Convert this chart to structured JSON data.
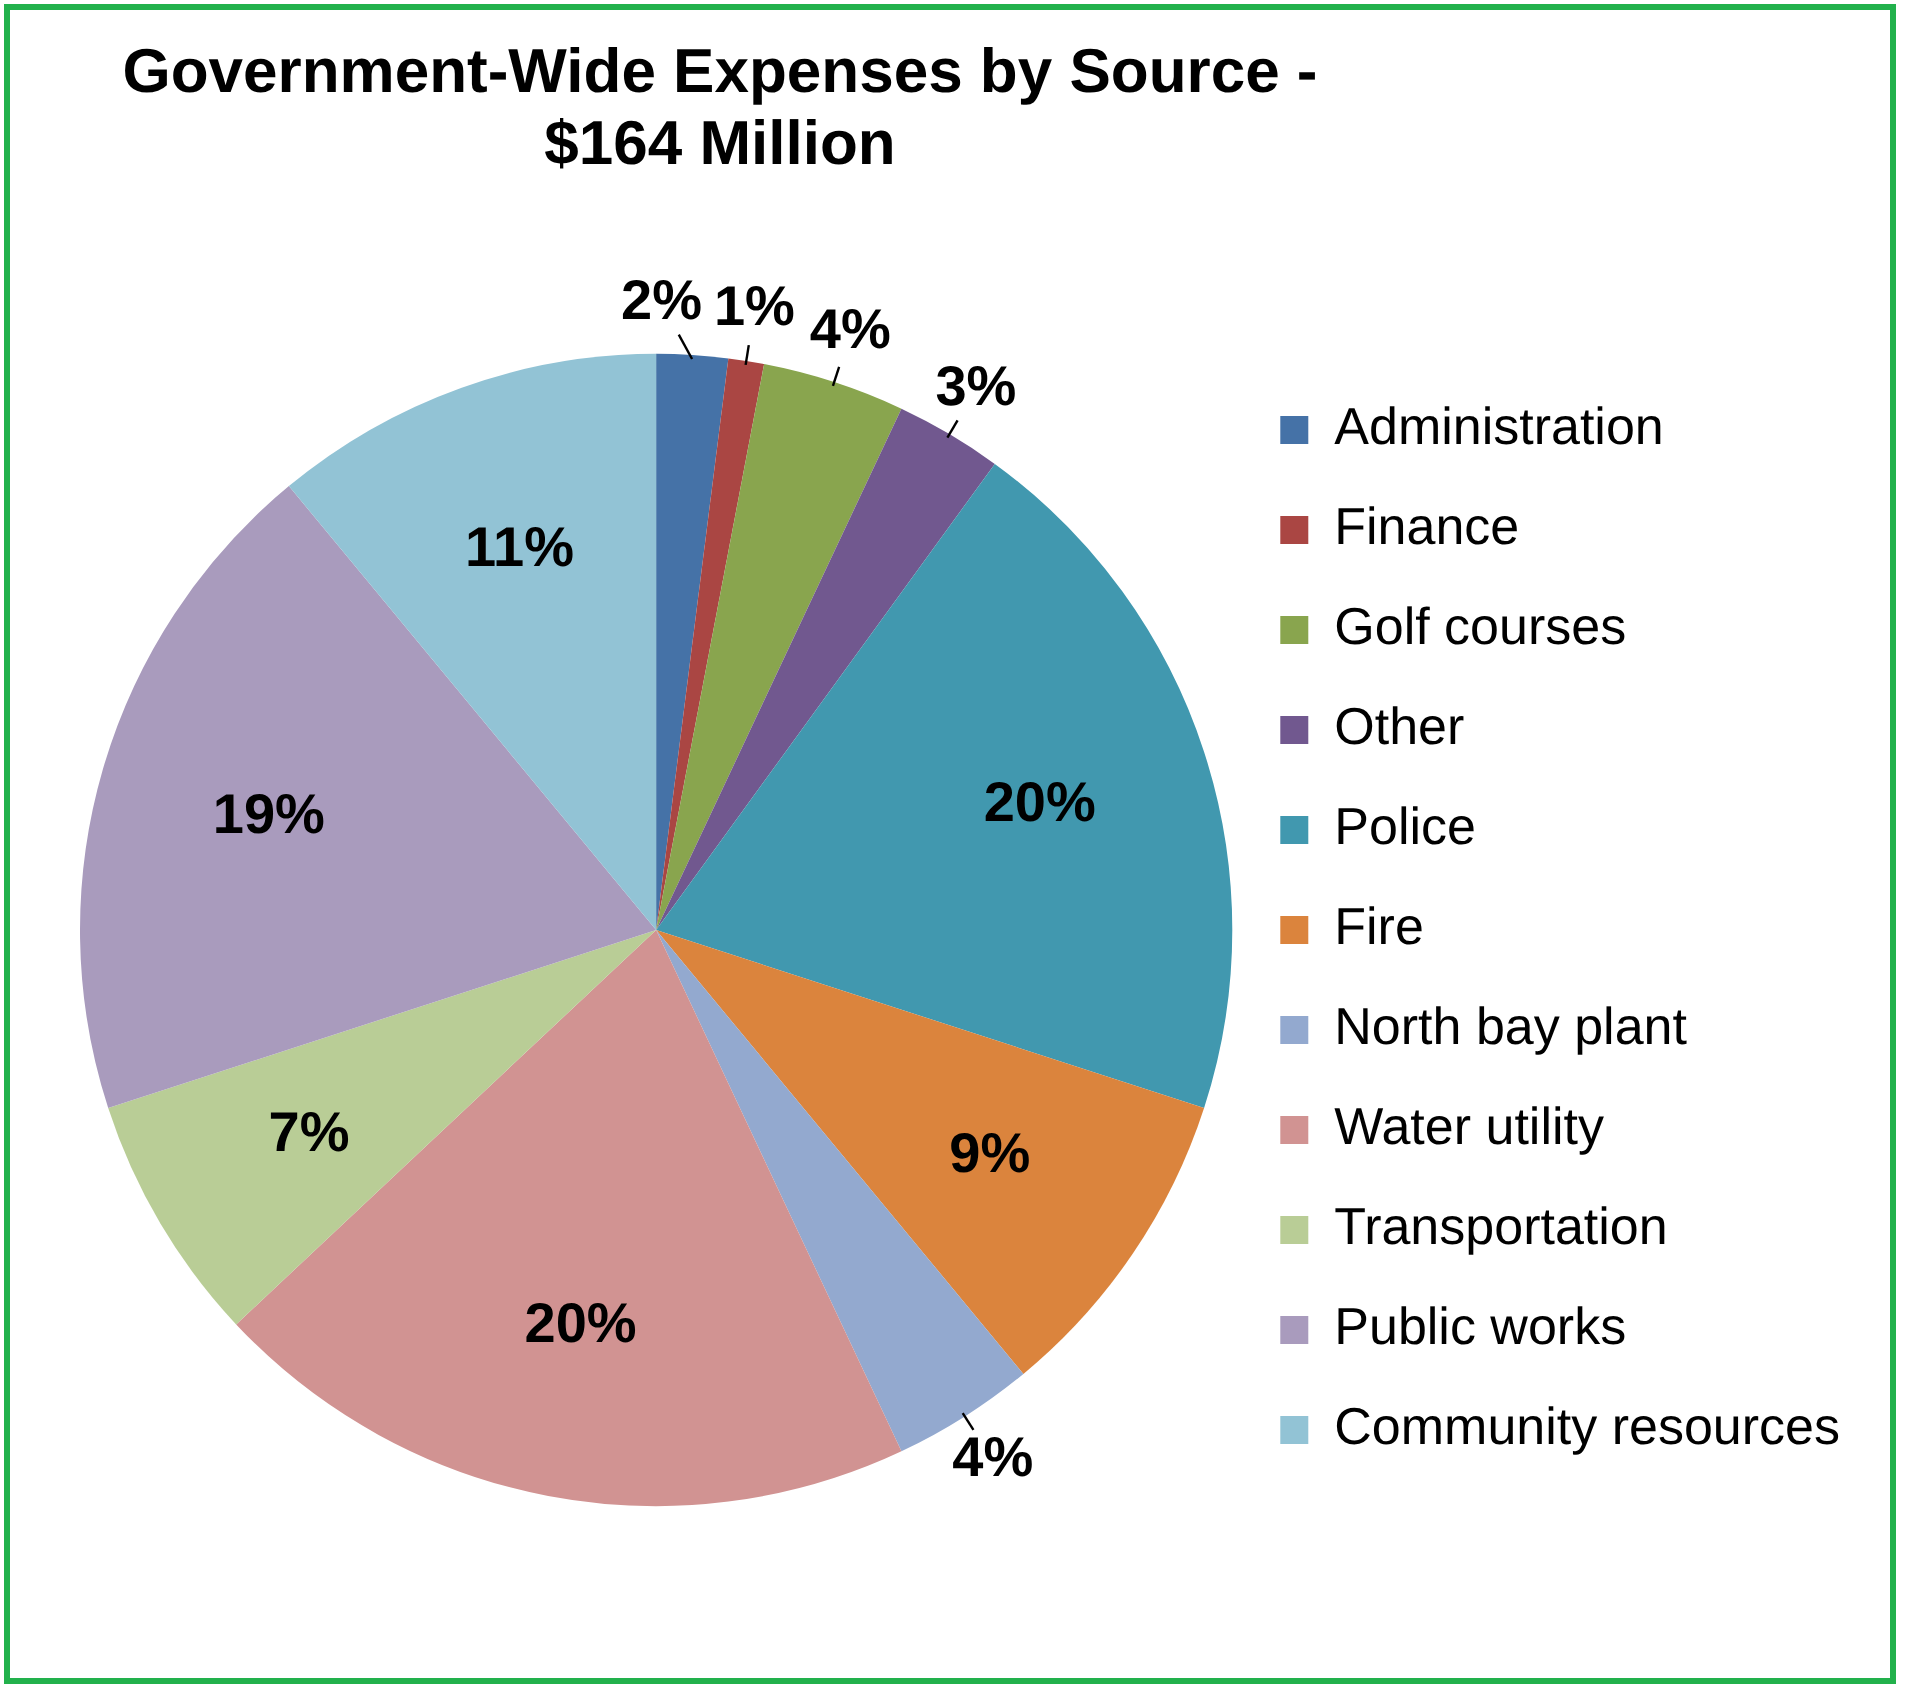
{
  "chart_data": {
    "type": "pie",
    "title": "Government-Wide Expenses by Source - $164 Million",
    "categories": [
      "Administration",
      "Finance",
      "Golf courses",
      "Other",
      "Police",
      "Fire",
      "North bay plant",
      "Water utility",
      "Transportation",
      "Public works",
      "Community resources"
    ],
    "values": [
      2,
      1,
      4,
      3,
      20,
      9,
      4,
      20,
      7,
      19,
      11
    ],
    "value_labels": [
      "2%",
      "1%",
      "4%",
      "3%",
      "20%",
      "9%",
      "4%",
      "20%",
      "7%",
      "19%",
      "11%"
    ],
    "colors": [
      "#4572a7",
      "#aa4643",
      "#89a54e",
      "#71588f",
      "#4198af",
      "#db843d",
      "#93a9cf",
      "#d19392",
      "#b9cd96",
      "#a99bbd",
      "#92c3d5"
    ],
    "legend": "right"
  }
}
